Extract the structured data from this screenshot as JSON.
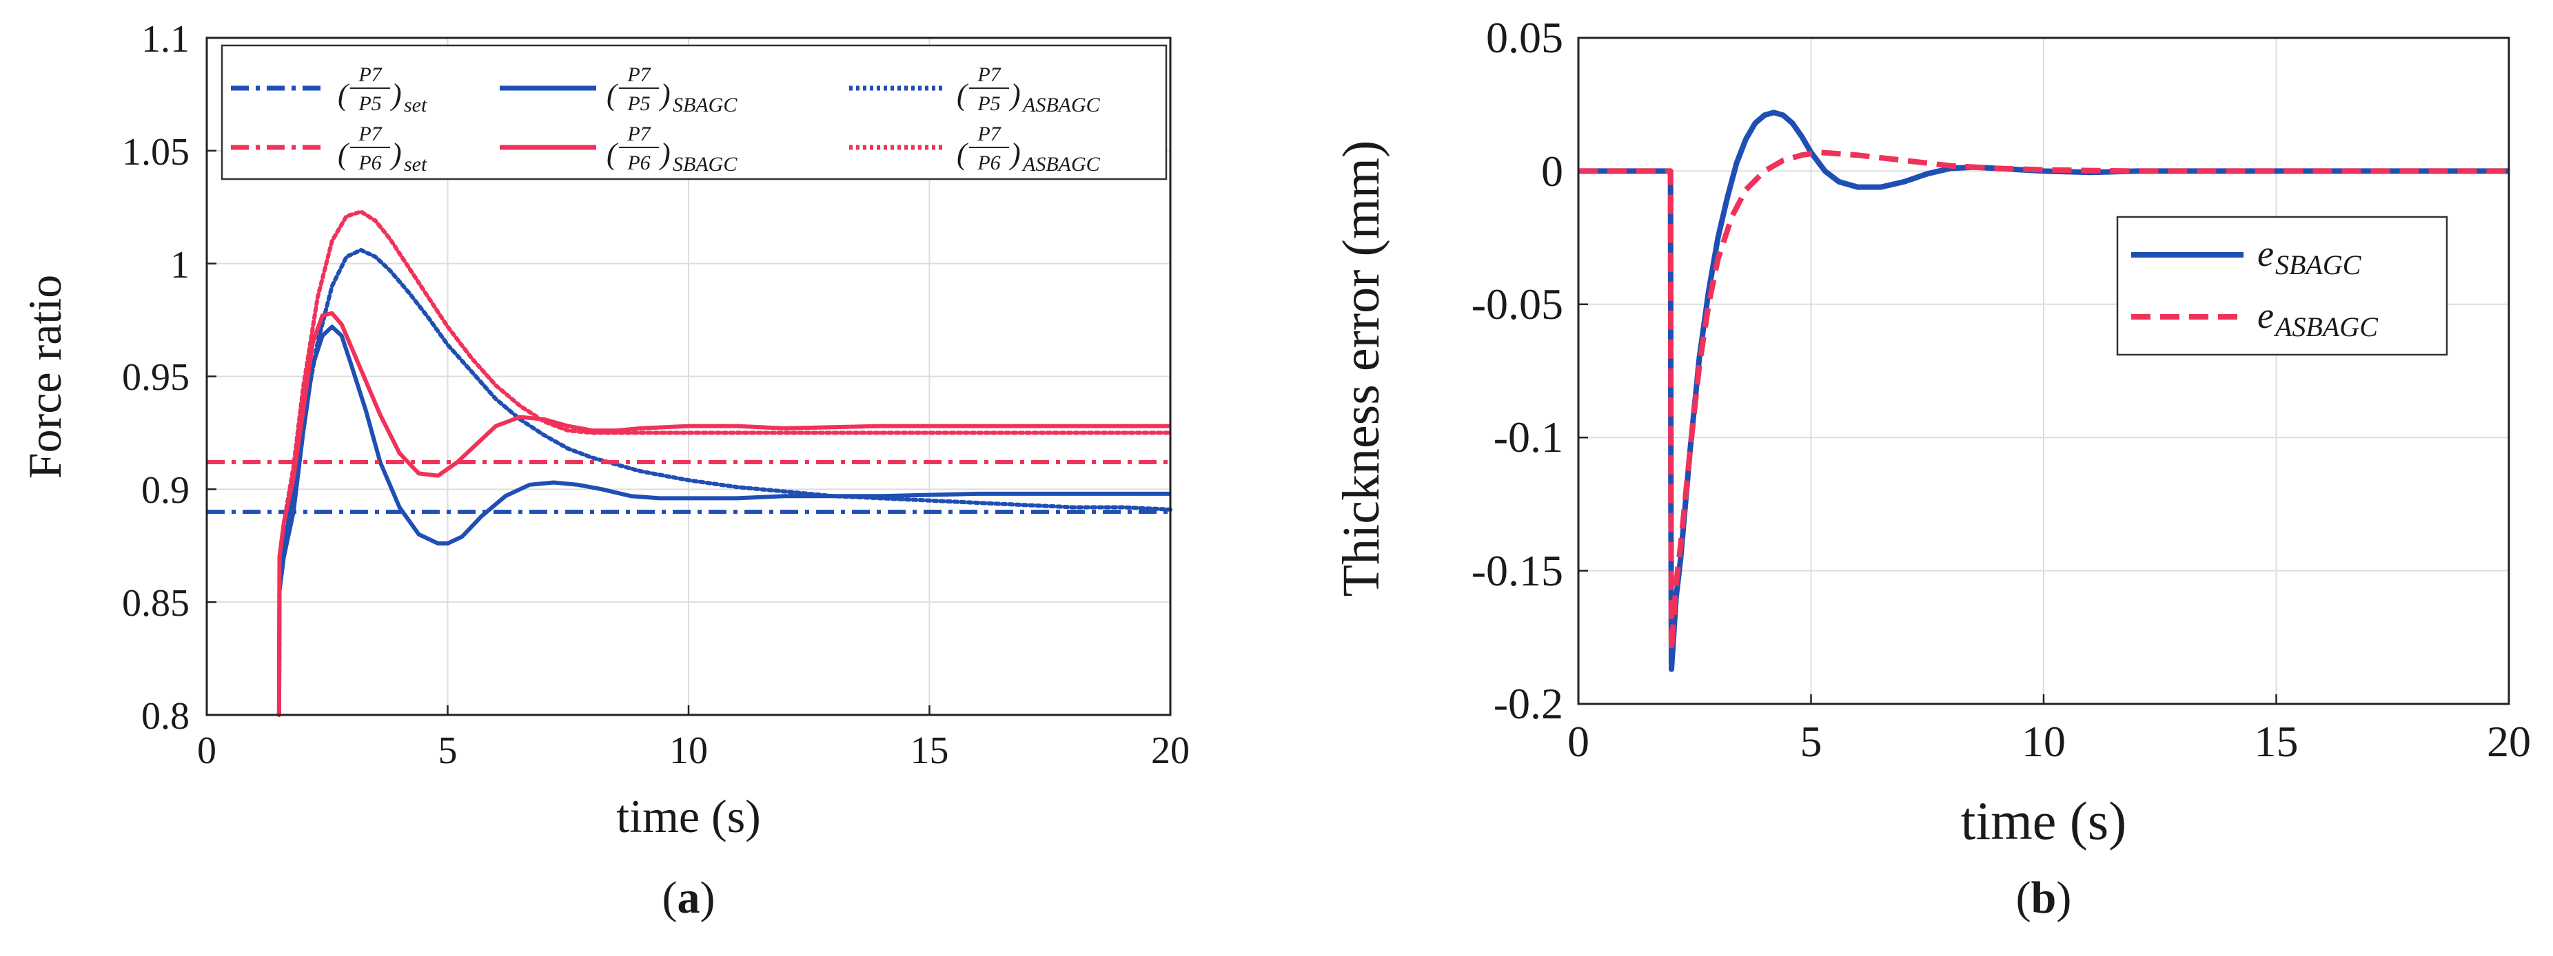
{
  "figure": {
    "panel_a_label_open": "(",
    "panel_a_label": "a",
    "panel_a_label_close": ")",
    "panel_b_label_open": "(",
    "panel_b_label": "b",
    "panel_b_label_close": ")"
  },
  "colors": {
    "blue": "#1f4fb4",
    "red": "#f0325a"
  },
  "chart_data": [
    {
      "type": "line",
      "panel": "a",
      "xlabel": "time (s)",
      "ylabel": "Force ratio",
      "xlim": [
        0,
        20
      ],
      "ylim": [
        0.8,
        1.1
      ],
      "xticks": [
        0,
        5,
        10,
        15,
        20
      ],
      "yticks": [
        0.8,
        0.85,
        0.9,
        0.95,
        1,
        1.05,
        1.1
      ],
      "xtick_labels": [
        "0",
        "5",
        "10",
        "15",
        "20"
      ],
      "ytick_labels": [
        "0.8",
        "0.85",
        "0.9",
        "0.95",
        "1",
        "1.05",
        "1.1"
      ],
      "grid": true,
      "legend_position": "top-right",
      "legend_ratio_num": [
        "P7",
        "P7",
        "P7",
        "P7",
        "P7",
        "P7"
      ],
      "legend_ratio_den": [
        "P5",
        "P5",
        "P5",
        "P6",
        "P6",
        "P6"
      ],
      "series": [
        {
          "name": "(P7/P5)set",
          "sub": "set",
          "color": "blue",
          "style": "dashdot",
          "x": [
            0,
            20
          ],
          "y": [
            0.89,
            0.89
          ]
        },
        {
          "name": "(P7/P5)SBAGC",
          "sub": "SBAGC",
          "color": "blue",
          "style": "solid",
          "x": [
            1.5,
            1.51,
            1.6,
            1.8,
            2.0,
            2.2,
            2.4,
            2.6,
            2.8,
            3.0,
            3.3,
            3.6,
            4.0,
            4.4,
            4.8,
            5.0,
            5.3,
            5.7,
            6.2,
            6.7,
            7.2,
            7.7,
            8.2,
            8.8,
            9.4,
            10,
            11,
            12,
            14,
            16,
            18,
            20
          ],
          "y": [
            0.8,
            0.855,
            0.87,
            0.89,
            0.925,
            0.955,
            0.968,
            0.972,
            0.968,
            0.955,
            0.935,
            0.912,
            0.892,
            0.88,
            0.876,
            0.876,
            0.879,
            0.888,
            0.897,
            0.902,
            0.903,
            0.902,
            0.9,
            0.897,
            0.896,
            0.896,
            0.896,
            0.897,
            0.897,
            0.898,
            0.898,
            0.898
          ]
        },
        {
          "name": "(P7/P5)ASBAGC",
          "sub": "ASBAGC",
          "color": "blue",
          "style": "dotted",
          "x": [
            1.5,
            1.51,
            1.6,
            1.8,
            2.0,
            2.3,
            2.6,
            2.9,
            3.2,
            3.5,
            3.8,
            4.2,
            4.6,
            5.0,
            5.5,
            6.0,
            6.5,
            7.0,
            7.5,
            8.0,
            8.5,
            9.0,
            9.5,
            10,
            11,
            12,
            13,
            14,
            15,
            16,
            17,
            18,
            19,
            20
          ],
          "y": [
            0.8,
            0.86,
            0.875,
            0.9,
            0.93,
            0.965,
            0.99,
            1.003,
            1.006,
            1.003,
            0.997,
            0.987,
            0.976,
            0.964,
            0.952,
            0.94,
            0.931,
            0.924,
            0.918,
            0.914,
            0.911,
            0.908,
            0.906,
            0.904,
            0.901,
            0.899,
            0.897,
            0.896,
            0.895,
            0.894,
            0.893,
            0.892,
            0.892,
            0.891
          ]
        },
        {
          "name": "(P7/P6)set",
          "sub": "set",
          "color": "red",
          "style": "dashdot",
          "x": [
            0,
            20
          ],
          "y": [
            0.912,
            0.912
          ]
        },
        {
          "name": "(P7/P6)SBAGC",
          "sub": "SBAGC",
          "color": "red",
          "style": "solid",
          "x": [
            1.5,
            1.51,
            1.6,
            1.8,
            2.0,
            2.2,
            2.4,
            2.6,
            2.8,
            3.0,
            3.3,
            3.6,
            4.0,
            4.4,
            4.8,
            5.2,
            5.6,
            6.0,
            6.5,
            7.0,
            7.5,
            8.0,
            8.5,
            9.0,
            10,
            11,
            12,
            14,
            16,
            18,
            20
          ],
          "y": [
            0.8,
            0.87,
            0.885,
            0.905,
            0.935,
            0.965,
            0.977,
            0.978,
            0.973,
            0.963,
            0.948,
            0.933,
            0.916,
            0.907,
            0.906,
            0.912,
            0.92,
            0.928,
            0.932,
            0.931,
            0.928,
            0.926,
            0.926,
            0.927,
            0.928,
            0.928,
            0.927,
            0.928,
            0.928,
            0.928,
            0.928
          ]
        },
        {
          "name": "(P7/P6)ASBAGC",
          "sub": "ASBAGC",
          "color": "red",
          "style": "dotted",
          "x": [
            1.5,
            1.51,
            1.6,
            1.8,
            2.0,
            2.3,
            2.6,
            2.9,
            3.2,
            3.5,
            3.8,
            4.2,
            4.6,
            5.0,
            5.5,
            6.0,
            6.5,
            7.0,
            7.5,
            8.0,
            8.5,
            9.0,
            9.5,
            10,
            11,
            12,
            13,
            14,
            15,
            16,
            18,
            20
          ],
          "y": [
            0.8,
            0.87,
            0.885,
            0.91,
            0.945,
            0.985,
            1.01,
            1.021,
            1.023,
            1.019,
            1.011,
            0.998,
            0.985,
            0.972,
            0.958,
            0.946,
            0.937,
            0.93,
            0.926,
            0.925,
            0.925,
            0.925,
            0.925,
            0.925,
            0.925,
            0.925,
            0.925,
            0.925,
            0.925,
            0.925,
            0.925,
            0.925
          ]
        }
      ]
    },
    {
      "type": "line",
      "panel": "b",
      "xlabel": "time (s)",
      "ylabel": "Thickness error (mm)",
      "xlim": [
        0,
        20
      ],
      "ylim": [
        -0.2,
        0.05
      ],
      "xticks": [
        0,
        5,
        10,
        15,
        20
      ],
      "yticks": [
        -0.2,
        -0.15,
        -0.1,
        -0.05,
        0,
        0.05
      ],
      "xtick_labels": [
        "0",
        "5",
        "10",
        "15",
        "20"
      ],
      "ytick_labels": [
        "-0.2",
        "-0.15",
        "-0.1",
        "-0.05",
        "0",
        "0.05"
      ],
      "grid": true,
      "legend_position": "center-right",
      "series": [
        {
          "name": "e_SBAGC",
          "base": "e",
          "sub": "SBAGC",
          "color": "blue",
          "style": "solid",
          "x": [
            0,
            1.98,
            1.99,
            2.0,
            2.1,
            2.2,
            2.4,
            2.6,
            2.8,
            3.0,
            3.2,
            3.4,
            3.6,
            3.8,
            4.0,
            4.2,
            4.4,
            4.6,
            4.8,
            5.0,
            5.3,
            5.6,
            6.0,
            6.5,
            7.0,
            7.5,
            8.0,
            8.5,
            9.0,
            10,
            11,
            12,
            14,
            16,
            18,
            20
          ],
          "y": [
            0,
            0,
            -0.13,
            -0.187,
            -0.16,
            -0.145,
            -0.105,
            -0.07,
            -0.045,
            -0.025,
            -0.01,
            0.003,
            0.012,
            0.018,
            0.021,
            0.022,
            0.021,
            0.018,
            0.013,
            0.007,
            0.0,
            -0.004,
            -0.006,
            -0.006,
            -0.004,
            -0.001,
            0.001,
            0.0015,
            0.001,
            0.0,
            -0.0005,
            0.0,
            0.0,
            0.0,
            0.0,
            0.0
          ]
        },
        {
          "name": "e_ASBAGC",
          "base": "e",
          "sub": "ASBAGC",
          "color": "red",
          "style": "dashed",
          "x": [
            0,
            1.98,
            1.99,
            2.0,
            2.1,
            2.2,
            2.4,
            2.6,
            2.8,
            3.0,
            3.3,
            3.6,
            4.0,
            4.4,
            4.8,
            5.2,
            5.6,
            6.0,
            6.5,
            7.0,
            7.5,
            8.0,
            8.5,
            9.0,
            10,
            11,
            12,
            14,
            16,
            18,
            20
          ],
          "y": [
            0,
            0,
            -0.12,
            -0.18,
            -0.155,
            -0.14,
            -0.105,
            -0.073,
            -0.05,
            -0.033,
            -0.017,
            -0.007,
            0.0,
            0.004,
            0.006,
            0.007,
            0.0065,
            0.006,
            0.005,
            0.004,
            0.003,
            0.002,
            0.0015,
            0.001,
            0.0005,
            0.0002,
            0.0,
            0.0,
            0.0,
            0.0,
            0.0
          ]
        }
      ]
    }
  ]
}
